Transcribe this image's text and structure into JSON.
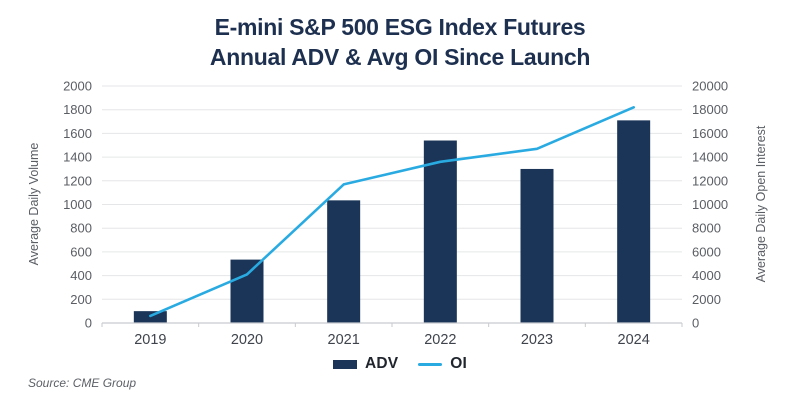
{
  "header": {
    "title_line1": "E-mini S&P 500 ESG Index Futures",
    "title_line2": "Annual ADV & Avg OI Since Launch"
  },
  "chart_data": {
    "type": "bar",
    "subtype": "bar-and-line-dual-axis",
    "categories": [
      "2019",
      "2020",
      "2021",
      "2022",
      "2023",
      "2024"
    ],
    "series": [
      {
        "name": "ADV",
        "type": "bar",
        "axis": "left",
        "color": "#1a3557",
        "values": [
          100,
          535,
          1035,
          1540,
          1300,
          1710
        ]
      },
      {
        "name": "OI",
        "type": "line",
        "axis": "right",
        "color": "#29abe2",
        "values": [
          600,
          4100,
          11700,
          13600,
          14700,
          18200
        ]
      }
    ],
    "left_axis": {
      "label": "Average Daily Volume",
      "min": 0,
      "max": 2000,
      "step": 200,
      "ticks": [
        0,
        200,
        400,
        600,
        800,
        1000,
        1200,
        1400,
        1600,
        1800,
        2000
      ]
    },
    "right_axis": {
      "label": "Average Daily Open Interest",
      "min": 0,
      "max": 20000,
      "step": 2000,
      "ticks": [
        0,
        2000,
        4000,
        6000,
        8000,
        10000,
        12000,
        14000,
        16000,
        18000,
        20000
      ]
    },
    "grid": true,
    "legend_position": "bottom",
    "title": "E-mini S&P 500 ESG Index Futures Annual ADV & Avg OI Since Launch"
  },
  "legend": {
    "adv_label": "ADV",
    "oi_label": "OI"
  },
  "source": {
    "text": "Source: CME Group"
  },
  "colors": {
    "title": "#1e3050",
    "bar": "#1a3557",
    "line": "#29abe2",
    "gridline": "#e5e6e8",
    "axis_line": "#c6cad0",
    "tick_text": "#5a5e64",
    "x_label_text": "#3f444c"
  }
}
